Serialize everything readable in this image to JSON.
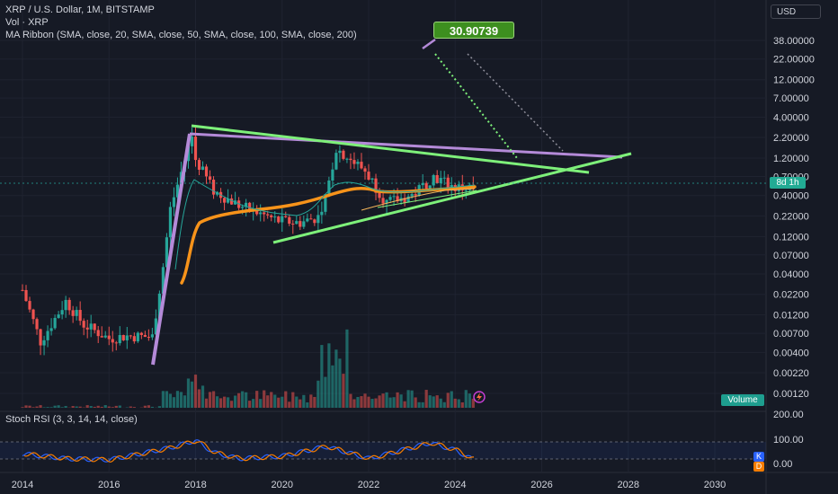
{
  "header": {
    "symbol_line": "XRP / U.S. Dollar, 1M, BITSTAMP",
    "volume_line": "Vol · XRP",
    "ma_line": "MA Ribbon (SMA, close, 20, SMA, close, 50, SMA, close, 100, SMA, close, 200)",
    "currency": "USD"
  },
  "rsi_pane": {
    "title": "Stoch RSI (3, 3, 14, 14, close)",
    "k_label": "K",
    "d_label": "D"
  },
  "badges": {
    "volume": "Volume",
    "bar_countdown": "8d 1h"
  },
  "annotation": {
    "target_label": "30.90739"
  },
  "colors": {
    "background": "#161a25",
    "up": "#26a69a",
    "down": "#ef5350",
    "trendline_green": "#7ef07a",
    "trendline_purple": "#b48ad8",
    "ma_orange": "#f7931a",
    "rsi_k": "#2962ff",
    "rsi_d": "#f57c00"
  },
  "chart_data": {
    "type": "candlestick",
    "price_axis": {
      "scale": "log",
      "ticks": [
        "38.00000",
        "22.00000",
        "12.00000",
        "7.00000",
        "4.00000",
        "2.20000",
        "1.20000",
        "0.70000",
        "0.40000",
        "0.22000",
        "0.12000",
        "0.07000",
        "0.04000",
        "0.02200",
        "0.01200",
        "0.00700",
        "0.00400",
        "0.00220",
        "0.00120"
      ]
    },
    "rsi_axis": {
      "ticks": [
        "200.00",
        "100.00",
        "0.00"
      ]
    },
    "time_axis": {
      "ticks": [
        "2014",
        "2016",
        "2018",
        "2020",
        "2022",
        "2024",
        "2026",
        "2028",
        "2030"
      ]
    },
    "monthly_close_approx": [
      {
        "x": "2014-01",
        "y": 0.025
      },
      {
        "x": "2014-06",
        "y": 0.0055
      },
      {
        "x": "2015-01",
        "y": 0.018
      },
      {
        "x": "2015-06",
        "y": 0.009
      },
      {
        "x": "2016-01",
        "y": 0.006
      },
      {
        "x": "2016-06",
        "y": 0.0065
      },
      {
        "x": "2017-01",
        "y": 0.0063
      },
      {
        "x": "2017-04",
        "y": 0.05
      },
      {
        "x": "2017-06",
        "y": 0.27
      },
      {
        "x": "2017-12",
        "y": 2.3
      },
      {
        "x": "2018-01",
        "y": 1.15
      },
      {
        "x": "2018-06",
        "y": 0.46
      },
      {
        "x": "2019-01",
        "y": 0.3
      },
      {
        "x": "2019-12",
        "y": 0.19
      },
      {
        "x": "2020-06",
        "y": 0.18
      },
      {
        "x": "2020-12",
        "y": 0.22
      },
      {
        "x": "2021-04",
        "y": 1.6
      },
      {
        "x": "2021-12",
        "y": 0.83
      },
      {
        "x": "2022-06",
        "y": 0.32
      },
      {
        "x": "2023-01",
        "y": 0.4
      },
      {
        "x": "2023-07",
        "y": 0.7
      },
      {
        "x": "2024-01",
        "y": 0.5
      },
      {
        "x": "2024-06",
        "y": 0.5
      }
    ],
    "stoch_rsi_k_approx": [
      {
        "x": "2014",
        "y": 40
      },
      {
        "x": "2015",
        "y": 20
      },
      {
        "x": "2016",
        "y": 15
      },
      {
        "x": "2017-06",
        "y": 65
      },
      {
        "x": "2018",
        "y": 95
      },
      {
        "x": "2018-06",
        "y": 45
      },
      {
        "x": "2019",
        "y": 20
      },
      {
        "x": "2020",
        "y": 30
      },
      {
        "x": "2021",
        "y": 70
      },
      {
        "x": "2021-06",
        "y": 50
      },
      {
        "x": "2022",
        "y": 20
      },
      {
        "x": "2023-06",
        "y": 85
      },
      {
        "x": "2024",
        "y": 55
      },
      {
        "x": "2024-06",
        "y": 15
      }
    ]
  }
}
